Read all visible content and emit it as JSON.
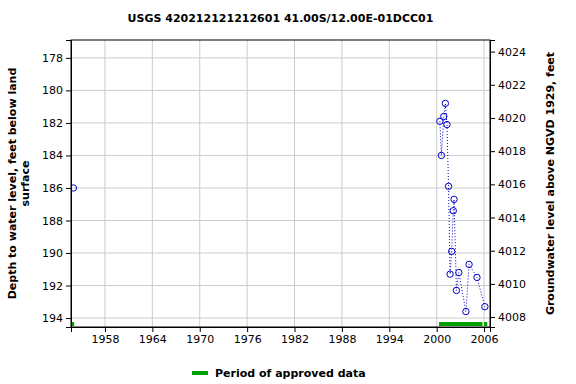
{
  "chart_data": {
    "type": "scatter",
    "title": "USGS 420212121212601 41.00S/12.00E-01DCC01",
    "ylabel": [
      "Depth to water level, feet below land",
      "surface"
    ],
    "y2label": "Groundwater level above NGVD 1929, feet",
    "xlim": [
      1953.7,
      2006.75
    ],
    "xticks": [
      1958,
      1964,
      1970,
      1976,
      1982,
      1988,
      1994,
      2000,
      2006
    ],
    "ylim": [
      194.55,
      176.9
    ],
    "yticks": [
      178,
      180,
      182,
      184,
      186,
      188,
      190,
      192,
      194
    ],
    "y2lim": [
      4007.4,
      4024.7
    ],
    "y2ticks": [
      4008,
      4010,
      4012,
      4014,
      4016,
      4018,
      4020,
      4022,
      4024
    ],
    "grid": true,
    "series": [
      {
        "color": "#0000c8",
        "marker": "circle",
        "line_style": "none",
        "x": [
          1954.0
        ],
        "values": [
          186.0
        ]
      },
      {
        "color": "#0000c8",
        "marker": "circle",
        "line_style": "dotted",
        "x": [
          2000.4,
          2000.6,
          2000.9,
          2001.1,
          2001.3,
          2001.5,
          2001.7,
          2001.9,
          2002.1,
          2002.2,
          2002.5,
          2002.8,
          2003.7,
          2004.1,
          2005.1,
          2006.1
        ],
        "values": [
          181.9,
          184.0,
          181.6,
          180.8,
          182.1,
          185.9,
          191.3,
          189.9,
          187.4,
          186.7,
          192.3,
          191.2,
          193.6,
          190.7,
          191.5,
          193.3
        ]
      }
    ],
    "approved_periods": {
      "name": "Period of approved data",
      "color": "#00a000",
      "ranges": [
        [
          1953.8,
          1954.1
        ],
        [
          2000.3,
          2005.8
        ],
        [
          2006.0,
          2006.4
        ]
      ]
    }
  }
}
